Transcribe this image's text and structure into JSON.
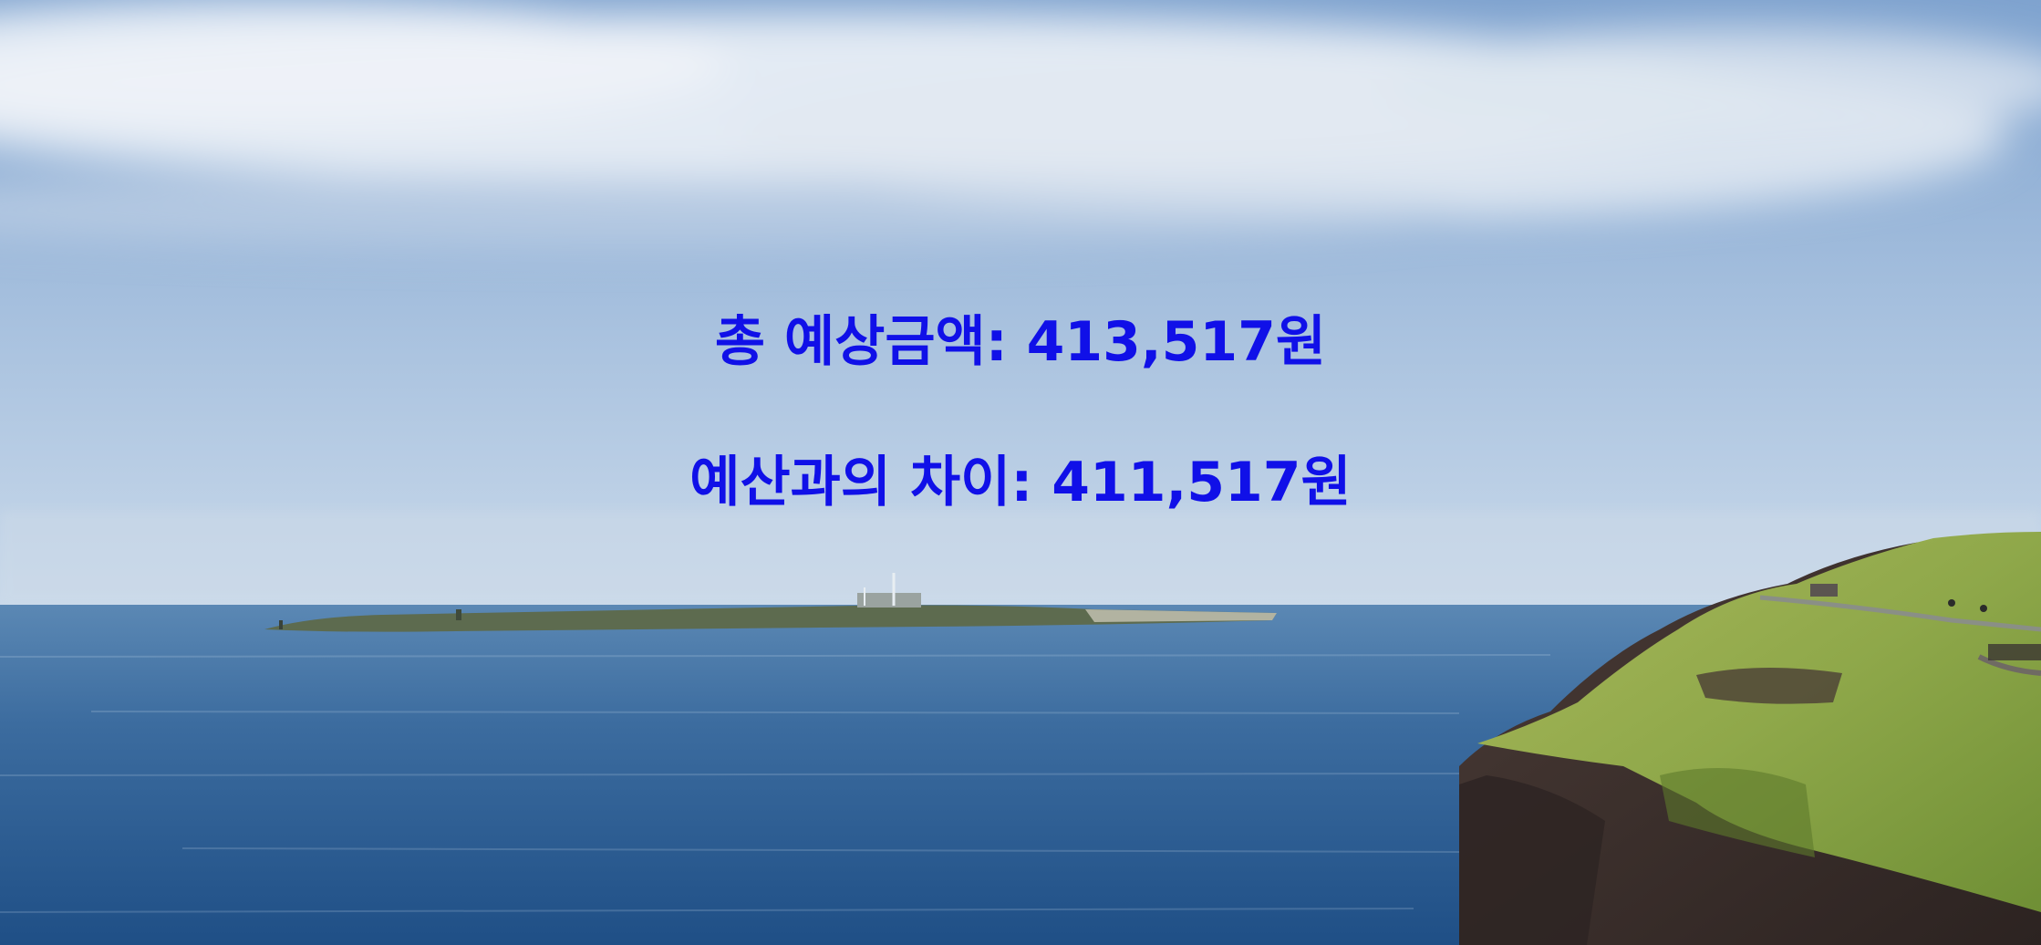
{
  "overlay": {
    "total_estimate": "총 예상금액: 413,517원",
    "budget_difference": "예산과의 차이: 411,517원"
  },
  "colors": {
    "overlay_text": "#1010e8",
    "sky_top": "#7fa3cf",
    "sky_bottom": "#c9d9ea",
    "sea_top": "#5b88b4",
    "sea_bottom": "#1f4f86",
    "grass": "#8fa84a",
    "rock": "#3a2e2b"
  },
  "scene": {
    "elements": [
      "sky",
      "clouds",
      "horizon-island",
      "sea",
      "grassy-cliff",
      "cliff-walkway"
    ]
  }
}
